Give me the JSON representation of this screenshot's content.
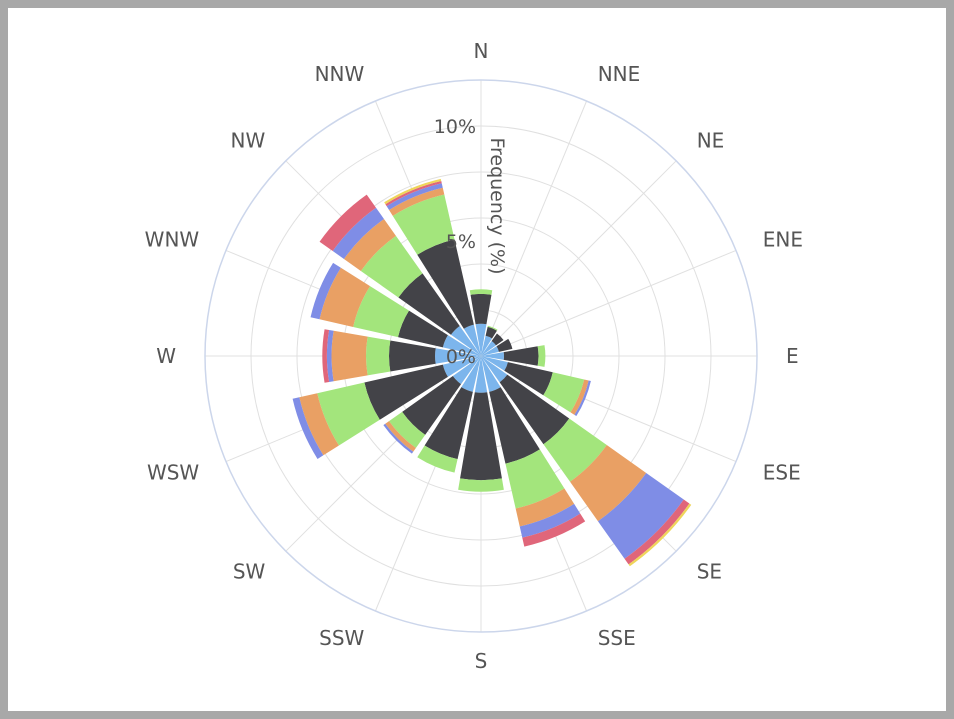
{
  "chart_data": {
    "type": "bar",
    "subtype": "wind-rose",
    "categories": [
      "N",
      "NNE",
      "NE",
      "ENE",
      "E",
      "ESE",
      "SE",
      "SSE",
      "S",
      "SSW",
      "SW",
      "WSW",
      "W",
      "WNW",
      "NW",
      "NNW"
    ],
    "radial_axis_title": "Frequency (%)",
    "radial_ticks": [
      "0%",
      "5%",
      "10%"
    ],
    "radial_range": [
      0,
      12
    ],
    "grid": true,
    "series": [
      {
        "color": "#7cb5ec",
        "values": [
          1.4,
          0.9,
          0.8,
          0.8,
          1.0,
          1.2,
          1.4,
          1.6,
          1.6,
          1.6,
          1.5,
          1.7,
          2.0,
          1.7,
          1.6,
          1.4
        ]
      },
      {
        "color": "#434348",
        "values": [
          1.3,
          0.4,
          0.4,
          0.6,
          1.5,
          2.0,
          3.3,
          3.2,
          3.8,
          3.0,
          2.7,
          3.5,
          2.0,
          2.0,
          2.8,
          3.8
        ]
      },
      {
        "color": "#a3e57c",
        "values": [
          0.2,
          0.05,
          0.0,
          0.0,
          0.3,
          1.4,
          2.0,
          2.0,
          0.5,
          0.6,
          0.7,
          2.1,
          1.0,
          2.0,
          2.0,
          2.0
        ]
      },
      {
        "color": "#e9a064",
        "values": [
          0.0,
          0.0,
          0.0,
          0.0,
          0.0,
          0.2,
          2.1,
          0.8,
          0.0,
          0.0,
          0.2,
          0.8,
          1.5,
          1.5,
          0.9,
          0.3
        ]
      },
      {
        "color": "#7f8de6",
        "values": [
          0.0,
          0.0,
          0.0,
          0.0,
          0.0,
          0.1,
          2.0,
          0.5,
          0.0,
          0.0,
          0.1,
          0.3,
          0.2,
          0.4,
          0.6,
          0.2
        ]
      },
      {
        "color": "#e0667a",
        "values": [
          0.0,
          0.0,
          0.0,
          0.0,
          0.0,
          0.0,
          0.3,
          0.4,
          0.0,
          0.0,
          0.0,
          0.0,
          0.2,
          0.0,
          0.7,
          0.1
        ]
      },
      {
        "color": "#efd55a",
        "values": [
          0.0,
          0.0,
          0.0,
          0.0,
          0.0,
          0.0,
          0.1,
          0.0,
          0.0,
          0.0,
          0.0,
          0.0,
          0.0,
          0.0,
          0.0,
          0.1
        ]
      }
    ]
  }
}
